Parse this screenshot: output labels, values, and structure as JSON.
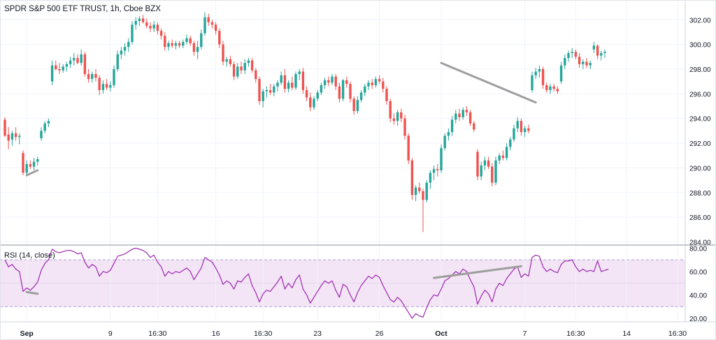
{
  "chart_data": {
    "type": "candlestick",
    "title": "SPDR S&P 500 ETF TRUST, 1h, Cboe BZX",
    "colors": {
      "up": "#26a69a",
      "down": "#ef5350",
      "trendline": "#9e9e9e",
      "rsi_line": "#9c27b0",
      "rsi_band": "#f3e5f5",
      "grid": "#f0f3fa"
    },
    "price_axis": {
      "ylim": [
        283.8,
        303.6
      ],
      "ticks": [
        "302.00",
        "300.00",
        "298.00",
        "296.00",
        "294.00",
        "292.00",
        "290.00",
        "288.00",
        "286.00",
        "284.00"
      ]
    },
    "x_axis": {
      "ticks": [
        {
          "label": "Sep",
          "index": 6
        },
        {
          "label": "9",
          "index": 29
        },
        {
          "label": "16:30",
          "index": 42
        },
        {
          "label": "16",
          "index": 58
        },
        {
          "label": "16:30",
          "index": 71
        },
        {
          "label": "23",
          "index": 86
        },
        {
          "label": "26",
          "index": 103
        },
        {
          "label": "Oct",
          "index": 120
        },
        {
          "label": "7",
          "index": 143
        },
        {
          "label": "16:30",
          "index": 157
        },
        {
          "label": "14",
          "index": 171
        },
        {
          "label": "16:30",
          "index": 185
        }
      ]
    },
    "candles": [
      [
        293.9,
        294.1,
        292.5,
        292.6
      ],
      [
        292.7,
        293.3,
        291.5,
        292.2
      ],
      [
        292.3,
        293.0,
        291.8,
        292.8
      ],
      [
        292.8,
        293.3,
        292.2,
        292.5
      ],
      [
        292.5,
        292.8,
        291.9,
        292.6
      ],
      [
        291.2,
        291.4,
        289.4,
        289.6
      ],
      [
        289.6,
        290.6,
        289.3,
        290.3
      ],
      [
        290.3,
        290.6,
        289.9,
        290.1
      ],
      [
        290.1,
        290.8,
        289.8,
        290.5
      ],
      [
        290.5,
        290.9,
        290.2,
        290.7
      ],
      [
        292.4,
        293.3,
        292.2,
        293.0
      ],
      [
        293.0,
        293.8,
        292.8,
        293.6
      ],
      [
        293.6,
        294.0,
        293.3,
        293.8
      ],
      [
        297.0,
        298.7,
        296.7,
        298.3
      ],
      [
        298.3,
        298.7,
        297.9,
        298.0
      ],
      [
        298.0,
        298.5,
        297.6,
        297.9
      ],
      [
        297.9,
        298.4,
        297.7,
        298.2
      ],
      [
        298.2,
        298.6,
        297.8,
        298.4
      ],
      [
        298.4,
        299.0,
        298.1,
        298.7
      ],
      [
        298.7,
        299.3,
        298.3,
        298.9
      ],
      [
        298.9,
        299.2,
        298.4,
        298.5
      ],
      [
        298.5,
        299.6,
        298.3,
        299.2
      ],
      [
        299.2,
        299.4,
        297.4,
        297.6
      ],
      [
        297.6,
        298.0,
        296.9,
        297.2
      ],
      [
        297.2,
        297.8,
        296.9,
        297.6
      ],
      [
        297.6,
        298.0,
        297.0,
        297.3
      ],
      [
        297.3,
        297.5,
        295.9,
        296.3
      ],
      [
        296.3,
        297.1,
        296.0,
        296.8
      ],
      [
        296.8,
        297.2,
        296.3,
        296.5
      ],
      [
        296.5,
        297.0,
        296.2,
        296.7
      ],
      [
        296.7,
        298.3,
        296.5,
        298.0
      ],
      [
        298.0,
        299.5,
        297.8,
        299.2
      ],
      [
        299.2,
        299.8,
        298.8,
        299.5
      ],
      [
        299.5,
        300.1,
        299.1,
        299.8
      ],
      [
        299.8,
        300.5,
        299.4,
        300.2
      ],
      [
        300.2,
        301.9,
        300.0,
        301.6
      ],
      [
        301.6,
        302.2,
        301.2,
        301.9
      ],
      [
        301.9,
        302.3,
        301.5,
        302.1
      ],
      [
        302.1,
        302.4,
        301.7,
        301.8
      ],
      [
        301.8,
        302.1,
        301.3,
        301.5
      ],
      [
        301.5,
        301.8,
        301.0,
        301.3
      ],
      [
        301.3,
        301.9,
        301.0,
        301.6
      ],
      [
        301.6,
        301.8,
        300.8,
        301.1
      ],
      [
        301.1,
        301.3,
        300.4,
        300.7
      ],
      [
        300.7,
        301.0,
        299.5,
        299.8
      ],
      [
        299.8,
        300.3,
        299.5,
        300.1
      ],
      [
        300.1,
        300.4,
        299.7,
        299.9
      ],
      [
        299.9,
        300.3,
        299.6,
        300.1
      ],
      [
        300.1,
        300.3,
        299.7,
        299.9
      ],
      [
        299.9,
        300.4,
        299.7,
        300.2
      ],
      [
        300.2,
        300.8,
        300.0,
        300.5
      ],
      [
        300.5,
        300.7,
        299.9,
        300.1
      ],
      [
        300.1,
        300.3,
        299.1,
        299.4
      ],
      [
        299.4,
        300.3,
        298.8,
        299.8
      ],
      [
        299.8,
        301.2,
        299.6,
        300.9
      ],
      [
        300.9,
        302.6,
        300.7,
        302.2
      ],
      [
        302.2,
        302.5,
        301.5,
        301.8
      ],
      [
        301.8,
        302.0,
        301.3,
        301.6
      ],
      [
        301.6,
        301.8,
        300.8,
        301.1
      ],
      [
        301.1,
        301.3,
        299.7,
        300.0
      ],
      [
        300.0,
        300.3,
        298.3,
        298.6
      ],
      [
        298.6,
        299.0,
        298.2,
        298.8
      ],
      [
        298.8,
        299.1,
        298.2,
        298.4
      ],
      [
        298.4,
        298.6,
        297.1,
        297.4
      ],
      [
        297.4,
        298.5,
        297.2,
        298.2
      ],
      [
        298.2,
        298.6,
        297.6,
        297.9
      ],
      [
        297.9,
        298.8,
        297.6,
        298.5
      ],
      [
        298.5,
        298.9,
        298.2,
        298.7
      ],
      [
        298.7,
        298.9,
        297.7,
        297.9
      ],
      [
        297.9,
        298.1,
        296.9,
        297.2
      ],
      [
        297.2,
        297.4,
        295.1,
        295.4
      ],
      [
        295.4,
        296.4,
        294.9,
        296.2
      ],
      [
        296.2,
        296.6,
        295.7,
        296.3
      ],
      [
        296.3,
        296.8,
        295.9,
        296.1
      ],
      [
        296.1,
        296.8,
        295.8,
        296.6
      ],
      [
        296.6,
        297.1,
        296.2,
        296.9
      ],
      [
        296.9,
        297.8,
        296.7,
        297.5
      ],
      [
        297.5,
        298.0,
        296.1,
        296.4
      ],
      [
        296.4,
        297.1,
        296.1,
        296.9
      ],
      [
        296.9,
        297.4,
        296.3,
        296.5
      ],
      [
        296.5,
        297.8,
        296.3,
        297.6
      ],
      [
        297.6,
        298.0,
        297.1,
        297.8
      ],
      [
        297.8,
        298.1,
        296.0,
        296.3
      ],
      [
        296.3,
        296.6,
        295.4,
        295.7
      ],
      [
        295.7,
        296.1,
        294.6,
        294.9
      ],
      [
        294.9,
        295.8,
        294.7,
        295.6
      ],
      [
        295.6,
        296.3,
        295.4,
        296.1
      ],
      [
        296.1,
        296.9,
        295.9,
        296.7
      ],
      [
        296.7,
        297.3,
        296.4,
        297.1
      ],
      [
        297.1,
        297.4,
        296.6,
        296.9
      ],
      [
        296.9,
        297.6,
        296.7,
        297.4
      ],
      [
        297.4,
        297.6,
        296.3,
        296.6
      ],
      [
        296.6,
        296.9,
        295.3,
        295.6
      ],
      [
        295.6,
        297.2,
        295.4,
        297.1
      ],
      [
        297.1,
        297.4,
        296.5,
        296.8
      ],
      [
        296.8,
        297.0,
        295.3,
        295.6
      ],
      [
        295.6,
        295.8,
        294.3,
        294.6
      ],
      [
        294.6,
        295.8,
        294.4,
        295.5
      ],
      [
        295.5,
        296.3,
        295.3,
        296.1
      ],
      [
        296.1,
        296.8,
        295.8,
        296.6
      ],
      [
        296.6,
        297.1,
        296.3,
        296.9
      ],
      [
        296.9,
        297.2,
        296.4,
        296.7
      ],
      [
        296.7,
        297.4,
        296.5,
        297.2
      ],
      [
        297.2,
        297.5,
        296.8,
        297.0
      ],
      [
        297.0,
        297.3,
        296.1,
        296.4
      ],
      [
        296.4,
        296.6,
        295.1,
        295.4
      ],
      [
        295.4,
        295.6,
        293.7,
        294.0
      ],
      [
        294.0,
        294.4,
        293.5,
        293.8
      ],
      [
        293.8,
        294.7,
        293.4,
        294.5
      ],
      [
        294.5,
        294.8,
        293.7,
        294.0
      ],
      [
        294.0,
        294.3,
        292.3,
        292.6
      ],
      [
        292.6,
        292.8,
        290.3,
        290.6
      ],
      [
        290.6,
        290.8,
        287.4,
        287.8
      ],
      [
        287.8,
        288.6,
        287.3,
        288.4
      ],
      [
        288.4,
        288.8,
        287.9,
        288.1
      ],
      [
        288.1,
        288.3,
        284.8,
        287.4
      ],
      [
        287.4,
        289.0,
        287.2,
        288.8
      ],
      [
        288.8,
        289.8,
        288.3,
        289.6
      ],
      [
        289.6,
        290.2,
        289.0,
        289.9
      ],
      [
        289.9,
        290.3,
        289.3,
        289.8
      ],
      [
        289.8,
        291.9,
        289.6,
        291.6
      ],
      [
        291.6,
        292.8,
        291.4,
        292.6
      ],
      [
        292.6,
        293.2,
        292.2,
        292.9
      ],
      [
        292.9,
        294.2,
        292.6,
        293.9
      ],
      [
        293.9,
        294.7,
        293.6,
        294.4
      ],
      [
        294.4,
        294.8,
        293.8,
        294.1
      ],
      [
        294.1,
        294.9,
        293.9,
        294.7
      ],
      [
        294.7,
        295.0,
        294.2,
        294.5
      ],
      [
        294.5,
        294.7,
        293.4,
        293.6
      ],
      [
        293.6,
        293.8,
        292.9,
        293.1
      ],
      [
        291.3,
        291.5,
        289.0,
        289.3
      ],
      [
        289.3,
        290.5,
        289.0,
        290.2
      ],
      [
        290.2,
        290.9,
        289.8,
        290.6
      ],
      [
        290.6,
        290.9,
        289.9,
        290.1
      ],
      [
        290.1,
        290.4,
        288.5,
        288.8
      ],
      [
        288.8,
        290.9,
        288.6,
        290.6
      ],
      [
        290.6,
        291.2,
        290.3,
        291.0
      ],
      [
        291.0,
        291.4,
        290.6,
        290.8
      ],
      [
        290.8,
        292.0,
        290.6,
        291.7
      ],
      [
        291.7,
        292.5,
        291.4,
        292.3
      ],
      [
        292.3,
        293.5,
        292.1,
        293.2
      ],
      [
        293.2,
        294.1,
        292.9,
        293.8
      ],
      [
        293.8,
        294.0,
        292.6,
        292.9
      ],
      [
        292.9,
        293.4,
        292.5,
        293.2
      ],
      [
        293.2,
        293.5,
        292.8,
        293.0
      ],
      [
        296.3,
        297.8,
        296.1,
        297.5
      ],
      [
        297.5,
        298.1,
        297.2,
        297.8
      ],
      [
        297.8,
        298.3,
        297.3,
        298.0
      ],
      [
        298.0,
        298.2,
        296.4,
        296.7
      ],
      [
        296.7,
        296.9,
        296.1,
        296.3
      ],
      [
        296.3,
        296.8,
        296.0,
        296.6
      ],
      [
        296.6,
        296.8,
        296.2,
        296.4
      ],
      [
        296.4,
        296.6,
        296.0,
        296.2
      ],
      [
        297.0,
        298.6,
        296.8,
        298.3
      ],
      [
        298.3,
        299.2,
        298.0,
        298.9
      ],
      [
        298.9,
        299.5,
        298.6,
        299.3
      ],
      [
        299.3,
        299.7,
        298.9,
        299.4
      ],
      [
        299.4,
        299.6,
        298.8,
        299.0
      ],
      [
        299.0,
        299.3,
        298.1,
        298.4
      ],
      [
        298.4,
        298.8,
        298.0,
        298.6
      ],
      [
        298.6,
        298.9,
        298.1,
        298.3
      ],
      [
        298.3,
        298.7,
        298.0,
        298.5
      ],
      [
        299.6,
        300.2,
        299.3,
        299.9
      ],
      [
        299.9,
        300.0,
        298.8,
        299.1
      ],
      [
        299.1,
        299.5,
        298.7,
        299.3
      ],
      [
        299.3,
        299.6,
        298.9,
        299.4
      ]
    ],
    "rsi": {
      "label": "RSI (14, close)",
      "ylim": [
        17,
        82
      ],
      "ticks": [
        "80.00",
        "60.00",
        "40.00",
        "20.00"
      ],
      "upper_band": 70,
      "lower_band": 30,
      "values": [
        70,
        64,
        66,
        62,
        60,
        43,
        46,
        44,
        47,
        51,
        61,
        67,
        70,
        79,
        77,
        76,
        77,
        78,
        78,
        77,
        75,
        76,
        68,
        63,
        66,
        64,
        56,
        60,
        59,
        61,
        67,
        73,
        74,
        75,
        77,
        79,
        80,
        79,
        78,
        76,
        72,
        74,
        68,
        64,
        56,
        60,
        58,
        60,
        59,
        61,
        63,
        60,
        53,
        58,
        63,
        72,
        70,
        68,
        63,
        57,
        49,
        52,
        50,
        45,
        52,
        51,
        55,
        58,
        48,
        42,
        34,
        41,
        44,
        43,
        47,
        51,
        56,
        45,
        50,
        46,
        53,
        57,
        45,
        40,
        33,
        38,
        43,
        48,
        52,
        50,
        52,
        44,
        38,
        49,
        47,
        40,
        34,
        42,
        48,
        52,
        56,
        54,
        57,
        55,
        48,
        42,
        36,
        34,
        38,
        35,
        30,
        25,
        20,
        24,
        22,
        21,
        29,
        36,
        40,
        39,
        45,
        52,
        54,
        57,
        60,
        58,
        62,
        60,
        53,
        47,
        32,
        39,
        44,
        41,
        34,
        45,
        50,
        48,
        54,
        58,
        62,
        64,
        55,
        58,
        56,
        72,
        74,
        73,
        64,
        60,
        62,
        60,
        59,
        66,
        69,
        69,
        70,
        64,
        60,
        62,
        60,
        61,
        60,
        69,
        60,
        61,
        62
      ]
    },
    "trendlines_price": [
      {
        "from": [
          6,
          289.4
        ],
        "to": [
          9,
          289.8
        ]
      },
      {
        "from": [
          120,
          298.5
        ],
        "to": [
          146,
          295.3
        ]
      }
    ],
    "trendlines_rsi": [
      {
        "from": [
          6,
          42.5
        ],
        "to": [
          9,
          41.0
        ]
      },
      {
        "from": [
          118,
          54.5
        ],
        "to": [
          142,
          64.5
        ]
      }
    ]
  }
}
